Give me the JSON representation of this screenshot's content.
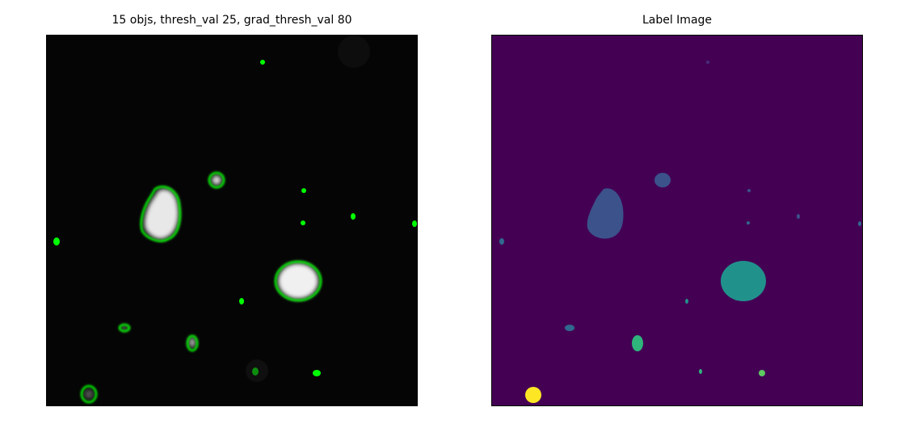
{
  "left_panel": {
    "title": "15 objs, thresh_val 25, grad_thresh_val 80"
  },
  "right_panel": {
    "title": "Label Image"
  },
  "colors": {
    "background_dark": "#050505",
    "contour": "#00ff00",
    "label_background": "#440154",
    "label_colors": [
      "#3b528b",
      "#21918c",
      "#2fb47c",
      "#5ec962",
      "#fde725",
      "#31688e"
    ]
  }
}
